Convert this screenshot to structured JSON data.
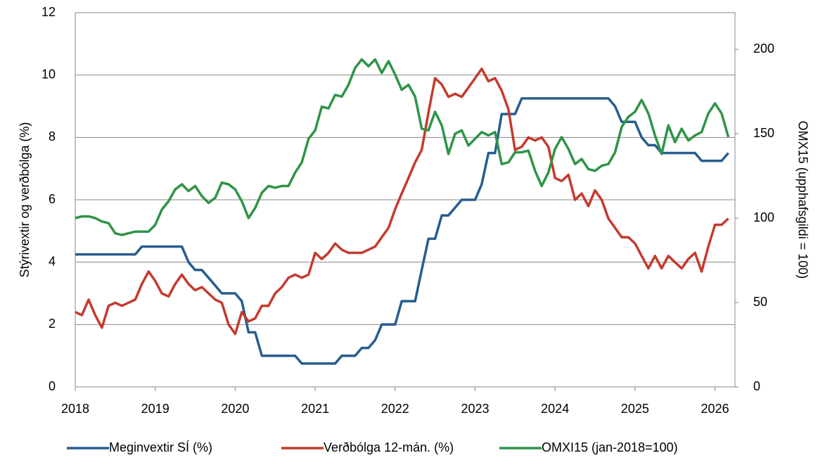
{
  "chart_data": {
    "type": "line",
    "y_label": "Stýrivextir og verðbólga (%)",
    "y2_label": "OMX15 (upphafsgildi = 100)",
    "x": [
      2018,
      2018.083,
      2018.167,
      2018.25,
      2018.333,
      2018.417,
      2018.5,
      2018.583,
      2018.667,
      2018.75,
      2018.833,
      2018.917,
      2019,
      2019.083,
      2019.167,
      2019.25,
      2019.333,
      2019.417,
      2019.5,
      2019.583,
      2019.667,
      2019.75,
      2019.833,
      2019.917,
      2020,
      2020.083,
      2020.167,
      2020.25,
      2020.333,
      2020.417,
      2020.5,
      2020.583,
      2020.667,
      2020.75,
      2020.833,
      2020.917,
      2021,
      2021.083,
      2021.167,
      2021.25,
      2021.333,
      2021.417,
      2021.5,
      2021.583,
      2021.667,
      2021.75,
      2021.833,
      2021.917,
      2022,
      2022.083,
      2022.167,
      2022.25,
      2022.333,
      2022.417,
      2022.5,
      2022.583,
      2022.667,
      2022.75,
      2022.833,
      2022.917,
      2023,
      2023.083,
      2023.167,
      2023.25,
      2023.333,
      2023.417,
      2023.5,
      2023.583,
      2023.667,
      2023.75,
      2023.833,
      2023.917,
      2024,
      2024.083,
      2024.167,
      2024.25,
      2024.333,
      2024.417,
      2024.5,
      2024.583,
      2024.667,
      2024.75,
      2024.833,
      2024.917,
      2025,
      2025.083,
      2025.167,
      2025.25,
      2025.333,
      2025.417,
      2025.5,
      2025.583,
      2025.667,
      2025.75,
      2025.833,
      2025.917,
      2026,
      2026.083,
      2026.167
    ],
    "series": [
      {
        "name": "Meginvextir SÍ (%)",
        "color": "#275d8f",
        "values": [
          4.25,
          4.25,
          4.25,
          4.25,
          4.25,
          4.25,
          4.25,
          4.25,
          4.25,
          4.25,
          4.5,
          4.5,
          4.5,
          4.5,
          4.5,
          4.5,
          4.5,
          4.0,
          3.75,
          3.75,
          3.5,
          3.25,
          3.0,
          3.0,
          3.0,
          2.75,
          1.75,
          1.75,
          1.0,
          1.0,
          1.0,
          1.0,
          1.0,
          1.0,
          0.75,
          0.75,
          0.75,
          0.75,
          0.75,
          0.75,
          1.0,
          1.0,
          1.0,
          1.25,
          1.25,
          1.5,
          2.0,
          2.0,
          2.0,
          2.75,
          2.75,
          2.75,
          3.75,
          4.75,
          4.75,
          5.5,
          5.5,
          5.75,
          6.0,
          6.0,
          6.0,
          6.5,
          7.5,
          7.5,
          8.75,
          8.75,
          8.75,
          9.25,
          9.25,
          9.25,
          9.25,
          9.25,
          9.25,
          9.25,
          9.25,
          9.25,
          9.25,
          9.25,
          9.25,
          9.25,
          9.25,
          9.0,
          8.5,
          8.5,
          8.5,
          8.0,
          7.75,
          7.75,
          7.5,
          7.5,
          7.5,
          7.5,
          7.5,
          7.5,
          7.25,
          7.25,
          7.25,
          7.25,
          7.5
        ]
      },
      {
        "name": "Verðbólga 12-mán. (%)",
        "color": "#c33b2e",
        "values": [
          2.4,
          2.3,
          2.8,
          2.3,
          1.9,
          2.6,
          2.7,
          2.6,
          2.7,
          2.8,
          3.3,
          3.7,
          3.4,
          3.0,
          2.9,
          3.3,
          3.6,
          3.3,
          3.1,
          3.2,
          3.0,
          2.8,
          2.7,
          2.0,
          1.7,
          2.4,
          2.1,
          2.2,
          2.6,
          2.6,
          3.0,
          3.2,
          3.5,
          3.6,
          3.5,
          3.6,
          4.3,
          4.1,
          4.3,
          4.6,
          4.4,
          4.3,
          4.3,
          4.3,
          4.4,
          4.5,
          4.8,
          5.1,
          5.7,
          6.2,
          6.7,
          7.2,
          7.6,
          8.8,
          9.9,
          9.7,
          9.3,
          9.4,
          9.3,
          9.6,
          9.9,
          10.2,
          9.8,
          9.9,
          9.5,
          8.9,
          7.6,
          7.7,
          8.0,
          7.9,
          8.0,
          7.7,
          6.7,
          6.6,
          6.8,
          6.0,
          6.2,
          5.8,
          6.3,
          6.0,
          5.4,
          5.1,
          4.8,
          4.8,
          4.6,
          4.2,
          3.8,
          4.2,
          3.8,
          4.2,
          4.0,
          3.8,
          4.1,
          4.3,
          3.7,
          4.5,
          5.2,
          5.2,
          5.4
        ]
      },
      {
        "name": "OMXI15 (jan-2018=100)",
        "color": "#2f9447",
        "axis": "y2",
        "values": [
          100,
          101,
          101,
          100,
          98,
          97,
          91,
          90,
          91,
          92,
          92,
          92,
          96,
          105,
          110,
          117,
          120,
          116,
          119,
          113,
          109,
          112,
          121,
          120,
          117,
          110,
          100,
          106,
          115,
          119,
          118,
          119,
          119,
          127,
          133,
          147,
          152,
          166,
          165,
          173,
          172,
          179,
          189,
          194,
          190,
          194,
          186,
          193,
          185,
          176,
          179,
          172,
          153,
          152,
          163,
          155,
          138,
          150,
          152,
          143,
          147,
          151,
          149,
          151,
          132,
          133,
          139,
          139,
          140,
          128,
          119,
          127,
          141,
          148,
          141,
          132,
          135,
          129,
          128,
          131,
          132,
          139,
          154,
          160,
          163,
          170,
          162,
          149,
          138,
          155,
          145,
          153,
          146,
          149,
          151,
          162,
          168,
          162,
          148
        ]
      }
    ],
    "xlim": [
      2018,
      2026.25
    ],
    "xticks": [
      2018,
      2019,
      2020,
      2021,
      2022,
      2023,
      2024,
      2025,
      2026
    ],
    "ylim": [
      0,
      12
    ],
    "yticks": [
      0,
      2,
      4,
      6,
      8,
      10,
      12
    ],
    "y2lim": [
      0,
      221.7
    ],
    "y2ticks": [
      0,
      50,
      100,
      150,
      200
    ],
    "grid": true,
    "legend": "bottom"
  }
}
